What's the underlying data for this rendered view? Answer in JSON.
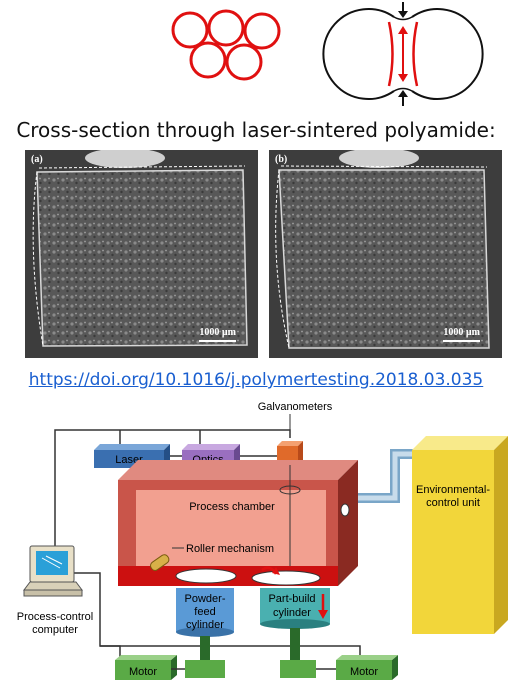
{
  "top_diagram": {},
  "caption": "Cross-section through laser-sintered polyamide:",
  "micrographs": [
    {
      "panel_label": "(a)",
      "scale_label": "1000 µm"
    },
    {
      "panel_label": "(b)",
      "scale_label": "1000 µm"
    }
  ],
  "doi_link": "https://doi.org/10.1016/j.polymertesting.2018.03.035",
  "schematic": {
    "galvanometers": "Galvanometers",
    "laser": "Laser",
    "optics": "Optics",
    "process_chamber": "Process chamber",
    "environmental_unit": [
      "Environmental-",
      "control unit"
    ],
    "roller_mechanism": "Roller mechanism",
    "powder_feed": [
      "Powder-",
      "feed",
      "cylinder"
    ],
    "part_build": [
      "Part-build",
      "cylinder"
    ],
    "process_control": [
      "Process-control",
      "computer"
    ],
    "motor": "Motor"
  },
  "colors": {
    "annotation_red": "#e01010",
    "laser_box": "#3a6fb0",
    "optics_box": "#9a6fc0",
    "galvo_box": "#e06a2a",
    "chamber": "#c9554a",
    "env_unit": "#f2d63a",
    "motor_box": "#5aaa46",
    "cylinder_blue": "#5a9ad6",
    "cylinder_teal": "#4ab0b0"
  }
}
